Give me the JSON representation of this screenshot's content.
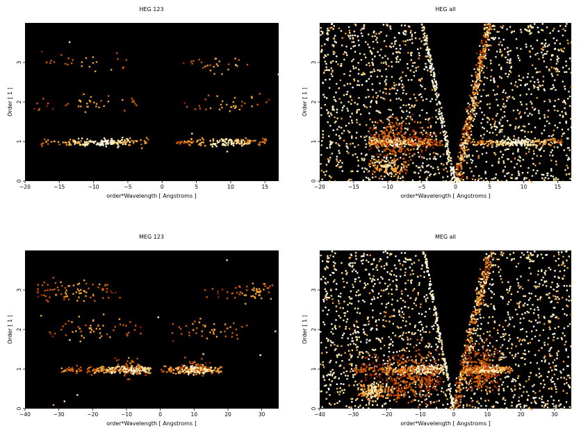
{
  "figure": {
    "background": "#ffffff",
    "plot_background": "#000000",
    "colormap": [
      "#000000",
      "#5a0800",
      "#9b2200",
      "#d35a00",
      "#f7a233",
      "#ffe9a8",
      "#ffffff"
    ]
  },
  "chart_data": [
    {
      "type": "heatmap",
      "title": "HEG 123",
      "xlabel": "order*Wavelength [ Angstroms ]",
      "ylabel": "Order [ 1 ]",
      "xlim": [
        -20,
        17
      ],
      "ylim": [
        0,
        4
      ],
      "xticks": [
        -20,
        -15,
        -10,
        -5,
        0,
        5,
        10,
        15
      ],
      "yticks": [
        0,
        1,
        2,
        3
      ],
      "grid": false,
      "clusters": [
        {
          "x_range": [
            -18,
            -2
          ],
          "y": 1.0,
          "y_spread": 0.05,
          "count": 180,
          "peak_x": -9,
          "intensity": 0.85
        },
        {
          "x_range": [
            2,
            15.5
          ],
          "y": 1.0,
          "y_spread": 0.05,
          "count": 150,
          "peak_x": 9,
          "intensity": 0.8
        },
        {
          "x_range": [
            -19,
            -2
          ],
          "y": 2.0,
          "y_spread": 0.12,
          "count": 40,
          "peak_x": -10,
          "intensity": 0.6
        },
        {
          "x_range": [
            2,
            16
          ],
          "y": 2.0,
          "y_spread": 0.12,
          "count": 35,
          "peak_x": 10,
          "intensity": 0.6
        },
        {
          "x_range": [
            -18,
            -5
          ],
          "y": 3.0,
          "y_spread": 0.12,
          "count": 25,
          "peak_x": -10,
          "intensity": 0.6
        },
        {
          "x_range": [
            3,
            15
          ],
          "y": 3.0,
          "y_spread": 0.12,
          "count": 25,
          "peak_x": 8,
          "intensity": 0.6
        }
      ],
      "background_points": 5,
      "wedge": null
    },
    {
      "type": "heatmap",
      "title": "HEG all",
      "xlabel": "order*Wavelength [ Angstroms ]",
      "ylabel": "Order [ 1 ]",
      "xlim": [
        -20,
        17
      ],
      "ylim": [
        0,
        4
      ],
      "xticks": [
        -20,
        -15,
        -10,
        -5,
        0,
        5,
        10,
        15
      ],
      "yticks": [
        0,
        1,
        2,
        3
      ],
      "grid": false,
      "clusters": [
        {
          "x_range": [
            -13,
            -2
          ],
          "y": 1.0,
          "y_spread": 0.05,
          "count": 260,
          "peak_x": -9,
          "intensity": 0.85
        },
        {
          "x_range": [
            2,
            15.5
          ],
          "y": 1.0,
          "y_spread": 0.05,
          "count": 200,
          "peak_x": 9,
          "intensity": 0.85
        },
        {
          "x_range": [
            -13,
            -3
          ],
          "y": 1.1,
          "y_spread": 0.25,
          "count": 260,
          "peak_x": -9,
          "intensity": 0.45
        },
        {
          "x_range": [
            -13,
            -7
          ],
          "y": 0.35,
          "y_spread": 0.12,
          "count": 120,
          "peak_x": -10,
          "intensity": 0.75
        }
      ],
      "background_points": 1700,
      "wedge": {
        "left_slope": -4.7,
        "right_slope": 4.8,
        "excluded_x_range": [
          -20,
          17
        ],
        "ridge_slope": 3.4,
        "ridge_count": 420
      }
    },
    {
      "type": "heatmap",
      "title": "MEG 123",
      "xlabel": "order*Wavelength [ Angstroms ]",
      "ylabel": "Order [ 1 ]",
      "xlim": [
        -40,
        35
      ],
      "ylim": [
        0,
        4
      ],
      "xticks": [
        -40,
        -30,
        -20,
        -10,
        0,
        10,
        20,
        30
      ],
      "yticks": [
        0,
        1,
        2,
        3
      ],
      "grid": false,
      "clusters": [
        {
          "x_range": [
            -30,
            -3
          ],
          "y": 1.0,
          "y_spread": 0.05,
          "count": 220,
          "peak_x": -9,
          "intensity": 0.85
        },
        {
          "x_range": [
            0,
            18
          ],
          "y": 1.0,
          "y_spread": 0.05,
          "count": 200,
          "peak_x": 10,
          "intensity": 0.85
        },
        {
          "x_range": [
            -14,
            -4
          ],
          "y": 1.05,
          "y_spread": 0.12,
          "count": 50,
          "peak_x": -9,
          "intensity": 0.5
        },
        {
          "x_range": [
            5,
            15
          ],
          "y": 1.05,
          "y_spread": 0.12,
          "count": 50,
          "peak_x": 10,
          "intensity": 0.5
        },
        {
          "x_range": [
            -33,
            -5
          ],
          "y": 2.0,
          "y_spread": 0.15,
          "count": 55,
          "peak_x": -20,
          "intensity": 0.6
        },
        {
          "x_range": [
            3,
            26
          ],
          "y": 2.0,
          "y_spread": 0.15,
          "count": 45,
          "peak_x": 15,
          "intensity": 0.6
        },
        {
          "x_range": [
            -37,
            -12
          ],
          "y": 3.0,
          "y_spread": 0.12,
          "count": 80,
          "peak_x": -25,
          "intensity": 0.6
        },
        {
          "x_range": [
            12,
            33
          ],
          "y": 3.0,
          "y_spread": 0.12,
          "count": 60,
          "peak_x": 28,
          "intensity": 0.6
        }
      ],
      "background_points": 10,
      "wedge": null
    },
    {
      "type": "heatmap",
      "title": "MEG all",
      "xlabel": "order*Wavelength [ Angstroms ]",
      "ylabel": "Order [ 1 ]",
      "xlim": [
        -40,
        35
      ],
      "ylim": [
        0,
        4
      ],
      "xticks": [
        -40,
        -30,
        -20,
        -10,
        0,
        10,
        20,
        30
      ],
      "yticks": [
        0,
        1,
        2,
        3
      ],
      "grid": false,
      "clusters": [
        {
          "x_range": [
            -30,
            -3
          ],
          "y": 1.0,
          "y_spread": 0.05,
          "count": 280,
          "peak_x": -9,
          "intensity": 0.85
        },
        {
          "x_range": [
            2,
            17
          ],
          "y": 1.0,
          "y_spread": 0.05,
          "count": 240,
          "peak_x": 10,
          "intensity": 0.85
        },
        {
          "x_range": [
            -28,
            -4
          ],
          "y": 0.85,
          "y_spread": 0.3,
          "count": 360,
          "peak_x": -12,
          "intensity": 0.45
        },
        {
          "x_range": [
            3,
            14
          ],
          "y": 1.0,
          "y_spread": 0.3,
          "count": 220,
          "peak_x": 8,
          "intensity": 0.45
        },
        {
          "x_range": [
            -29,
            -16
          ],
          "y": 0.45,
          "y_spread": 0.1,
          "count": 150,
          "peak_x": -24,
          "intensity": 0.75
        }
      ],
      "background_points": 1800,
      "wedge": {
        "left_slope": -8.8,
        "right_slope": 10.5,
        "excluded_x_range": [
          -40,
          35
        ],
        "ridge_slope": 6.0,
        "ridge_count": 380
      }
    }
  ]
}
